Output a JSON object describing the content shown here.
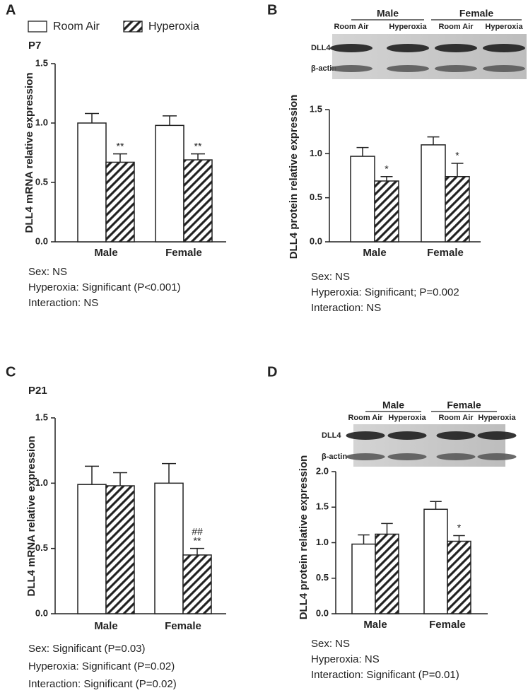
{
  "legend": [
    "Room Air",
    "Hyperoxia"
  ],
  "chart_data": [
    {
      "type": "bar",
      "panel": "A",
      "subtitle": "P7",
      "ylabel": "DLL4 mRNA relative expression",
      "categories": [
        "Male",
        "Female"
      ],
      "series": [
        {
          "name": "Room Air",
          "color": "#ffffff",
          "hatched": false,
          "values": [
            1.0,
            0.98
          ],
          "errors": [
            0.08,
            0.08
          ],
          "significance": [
            null,
            null
          ]
        },
        {
          "name": "Hyperoxia",
          "color": "#ffffff",
          "hatched": true,
          "values": [
            0.67,
            0.69
          ],
          "errors": [
            0.07,
            0.05
          ],
          "significance": [
            [
              "**"
            ],
            [
              "**"
            ]
          ]
        }
      ],
      "ylim": [
        0,
        1.5
      ],
      "yticks": [
        {
          "value": 0,
          "label": "0.0"
        },
        {
          "value": 0.5,
          "label": "0.5"
        },
        {
          "value": 1,
          "label": "1.0"
        },
        {
          "value": 1.5,
          "label": "1.5"
        }
      ],
      "notes": [
        "Sex: NS",
        "Hyperoxia: Significant (P<0.001)",
        "Interaction: NS"
      ]
    },
    {
      "type": "bar",
      "panel": "B",
      "ylabel": "DLL4 protein relative expression",
      "blot": {
        "groups": [
          "Male",
          "Female"
        ],
        "lanes": [
          "Room Air",
          "Hyperoxia",
          "Room Air",
          "Hyperoxia"
        ],
        "rows": [
          "DLL4",
          "β-actin"
        ]
      },
      "categories": [
        "Male",
        "Female"
      ],
      "series": [
        {
          "color": "#ffffff",
          "hatched": false,
          "values": [
            0.97,
            1.1
          ],
          "errors": [
            0.1,
            0.09
          ],
          "significance": [
            null,
            null
          ]
        },
        {
          "color": "#ffffff",
          "hatched": true,
          "values": [
            0.69,
            0.74
          ],
          "errors": [
            0.05,
            0.15
          ],
          "significance": [
            [
              "*"
            ],
            [
              "*"
            ]
          ]
        }
      ],
      "ylim": [
        0,
        1.5
      ],
      "yticks": [
        {
          "value": 0,
          "label": "0.0"
        },
        {
          "value": 0.5,
          "label": "0.5"
        },
        {
          "value": 1,
          "label": "1.0"
        },
        {
          "value": 1.5,
          "label": "1.5"
        }
      ],
      "notes": [
        "Sex: NS",
        "Hyperoxia: Significant; P=0.002",
        "Interaction: NS"
      ]
    },
    {
      "type": "bar",
      "panel": "C",
      "subtitle": "P21",
      "ylabel": "DLL4 mRNA relative expression",
      "categories": [
        "Male",
        "Female"
      ],
      "series": [
        {
          "color": "#ffffff",
          "hatched": false,
          "values": [
            0.99,
            1.0
          ],
          "errors": [
            0.14,
            0.15
          ],
          "significance": [
            null,
            null
          ]
        },
        {
          "color": "#ffffff",
          "hatched": true,
          "values": [
            0.98,
            0.45
          ],
          "errors": [
            0.1,
            0.05
          ],
          "significance": [
            null,
            [
              "**",
              "##"
            ]
          ]
        }
      ],
      "ylim": [
        0,
        1.5
      ],
      "yticks": [
        {
          "value": 0,
          "label": "0.0"
        },
        {
          "value": 0.5,
          "label": "0.5"
        },
        {
          "value": 1,
          "label": "1.0"
        },
        {
          "value": 1.5,
          "label": "1.5"
        }
      ],
      "notes": [
        "Sex: Significant (P=0.03)",
        "Hyperoxia: Significant (P=0.02)",
        "Interaction: Significant (P=0.02)"
      ]
    },
    {
      "type": "bar",
      "panel": "D",
      "ylabel": "DLL4 protein relative expression",
      "blot": {
        "groups": [
          "Male",
          "Female"
        ],
        "lanes": [
          "Room Air",
          "Hyperoxia",
          "Room Air",
          "Hyperoxia"
        ],
        "rows": [
          "DLL4",
          "β-actin"
        ]
      },
      "categories": [
        "Male",
        "Female"
      ],
      "series": [
        {
          "color": "#ffffff",
          "hatched": false,
          "values": [
            0.98,
            1.47
          ],
          "errors": [
            0.13,
            0.11
          ],
          "significance": [
            null,
            null
          ]
        },
        {
          "color": "#ffffff",
          "hatched": true,
          "values": [
            1.12,
            1.02
          ],
          "errors": [
            0.15,
            0.08
          ],
          "significance": [
            null,
            [
              "*"
            ]
          ]
        }
      ],
      "ylim": [
        0,
        2
      ],
      "yticks": [
        {
          "value": 0,
          "label": "0.0"
        },
        {
          "value": 0.5,
          "label": "0.5"
        },
        {
          "value": 1,
          "label": "1.0"
        },
        {
          "value": 1.5,
          "label": "1.5"
        },
        {
          "value": 2,
          "label": "2.0"
        }
      ],
      "notes": [
        "Sex: NS",
        "Hyperoxia: NS",
        "Interaction: Significant (P=0.01)"
      ]
    }
  ]
}
